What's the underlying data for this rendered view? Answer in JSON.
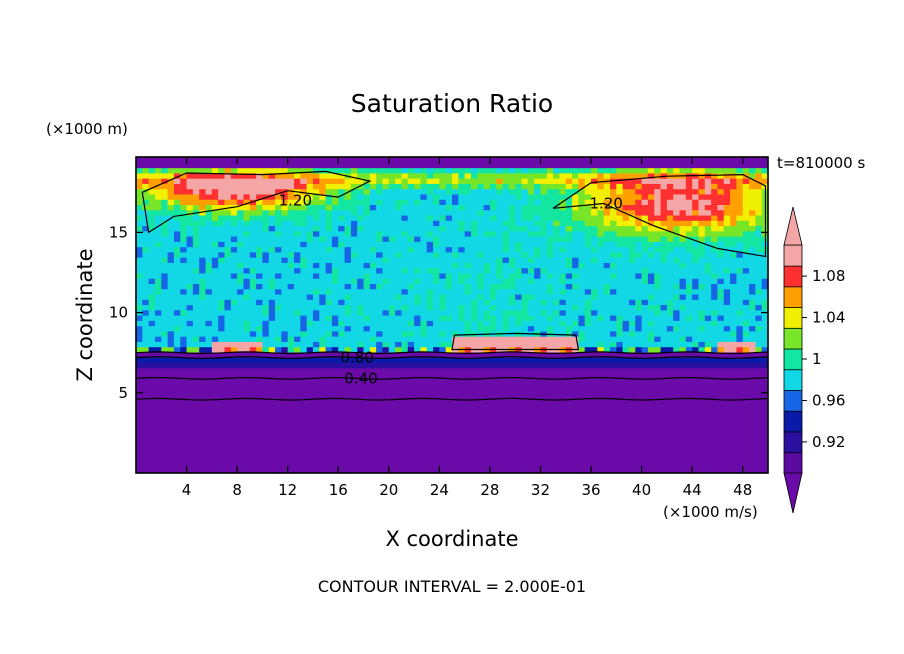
{
  "chart_data": {
    "type": "heatmap",
    "title": "Saturation Ratio",
    "xlabel": "X coordinate",
    "ylabel": "Z coordinate",
    "x_units": "(×1000 m/s)",
    "y_units": "(×1000 m)",
    "time_label": "t=810000 s",
    "footer": "CONTOUR INTERVAL = 2.000E-01",
    "xlim": [
      0,
      50
    ],
    "ylim": [
      0,
      19.7
    ],
    "x_ticks": [
      4,
      8,
      12,
      16,
      20,
      24,
      28,
      32,
      36,
      40,
      44,
      48
    ],
    "y_ticks": [
      5,
      10,
      15
    ],
    "colorbar": {
      "levels": [
        0.9,
        0.92,
        0.94,
        0.96,
        0.98,
        1.0,
        1.02,
        1.04,
        1.06,
        1.08,
        1.1
      ],
      "tick_labels": [
        "0.92",
        "0.96",
        "1",
        "1.04",
        "1.08"
      ],
      "tick_values": [
        0.92,
        0.96,
        1.0,
        1.04,
        1.08
      ],
      "colors": [
        "#5a0aa0",
        "#2a0fa0",
        "#0a1aa8",
        "#1565e6",
        "#12d8e6",
        "#12e6a0",
        "#78e628",
        "#f0f000",
        "#ffa000",
        "#ff3030",
        "#f4a6a6"
      ],
      "under_color": "#6a0aa8",
      "over_color": "#f4a6a6"
    },
    "contour_interval": 0.2,
    "contour_labels": [
      {
        "text": "1.20",
        "x": 12.6,
        "z": 17.0
      },
      {
        "text": "1.20",
        "x": 37.2,
        "z": 16.8
      },
      {
        "text": "0.80",
        "x": 17.5,
        "z": 7.2
      },
      {
        "text": "0.40",
        "x": 17.8,
        "z": 5.9
      }
    ],
    "regions": [
      {
        "name": "stratosphere-dry",
        "z_range": [
          19.0,
          19.7
        ],
        "value": 0.9
      },
      {
        "name": "upper-supersaturated-left",
        "x_range": [
          0,
          16
        ],
        "z_range": [
          16.5,
          18.8
        ],
        "value": 1.1
      },
      {
        "name": "upper-supersaturated-right",
        "x_range": [
          35,
          50
        ],
        "z_range": [
          15.5,
          18.5
        ],
        "value": 1.1
      },
      {
        "name": "cloud-layer",
        "z_range": [
          7.5,
          16.5
        ],
        "value": 0.99
      },
      {
        "name": "mid-pink-patch",
        "x_range": [
          25,
          35
        ],
        "z_range": [
          7.6,
          8.6
        ],
        "value": 1.1
      },
      {
        "name": "lower-dry-layer",
        "z_range": [
          0,
          7.3
        ],
        "value": 0.9
      }
    ]
  }
}
